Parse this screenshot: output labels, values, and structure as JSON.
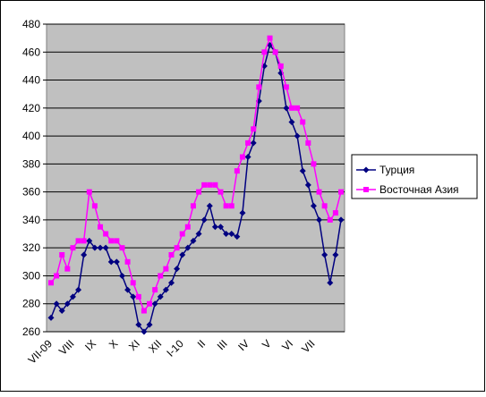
{
  "chart_data": {
    "type": "line",
    "categories": [
      "VII-09",
      null,
      null,
      null,
      "VIII",
      null,
      null,
      null,
      "IX",
      null,
      null,
      null,
      "X",
      null,
      null,
      null,
      "XI",
      null,
      null,
      null,
      "XII",
      null,
      null,
      null,
      "I-10",
      null,
      null,
      null,
      "II",
      null,
      null,
      null,
      "III",
      null,
      null,
      null,
      "IV",
      null,
      null,
      null,
      "V",
      null,
      null,
      null,
      "VI",
      null,
      null,
      null,
      "VII",
      null,
      null,
      null,
      null,
      null
    ],
    "series": [
      {
        "name": "Турция",
        "color": "#000080",
        "marker": "diamond",
        "values": [
          270,
          280,
          275,
          280,
          285,
          290,
          315,
          325,
          320,
          320,
          320,
          310,
          310,
          300,
          290,
          285,
          265,
          260,
          265,
          280,
          285,
          290,
          295,
          305,
          315,
          320,
          325,
          330,
          340,
          350,
          335,
          335,
          330,
          330,
          328,
          345,
          385,
          395,
          425,
          450,
          465,
          460,
          445,
          420,
          410,
          400,
          375,
          365,
          350,
          340,
          315,
          295,
          315,
          340
        ]
      },
      {
        "name": "Восточная Азия",
        "color": "#ff00ff",
        "marker": "square",
        "values": [
          295,
          300,
          315,
          305,
          320,
          325,
          325,
          360,
          350,
          335,
          330,
          325,
          325,
          320,
          310,
          295,
          285,
          275,
          280,
          290,
          300,
          305,
          315,
          320,
          330,
          335,
          350,
          360,
          365,
          365,
          365,
          360,
          350,
          350,
          375,
          385,
          395,
          405,
          435,
          460,
          470,
          460,
          450,
          435,
          420,
          420,
          410,
          395,
          380,
          360,
          350,
          340,
          345,
          360
        ]
      }
    ],
    "ylim": [
      260,
      480
    ],
    "yticks": [
      260,
      280,
      300,
      320,
      340,
      360,
      380,
      400,
      420,
      440,
      460,
      480
    ],
    "grid": true,
    "legend": "right"
  }
}
